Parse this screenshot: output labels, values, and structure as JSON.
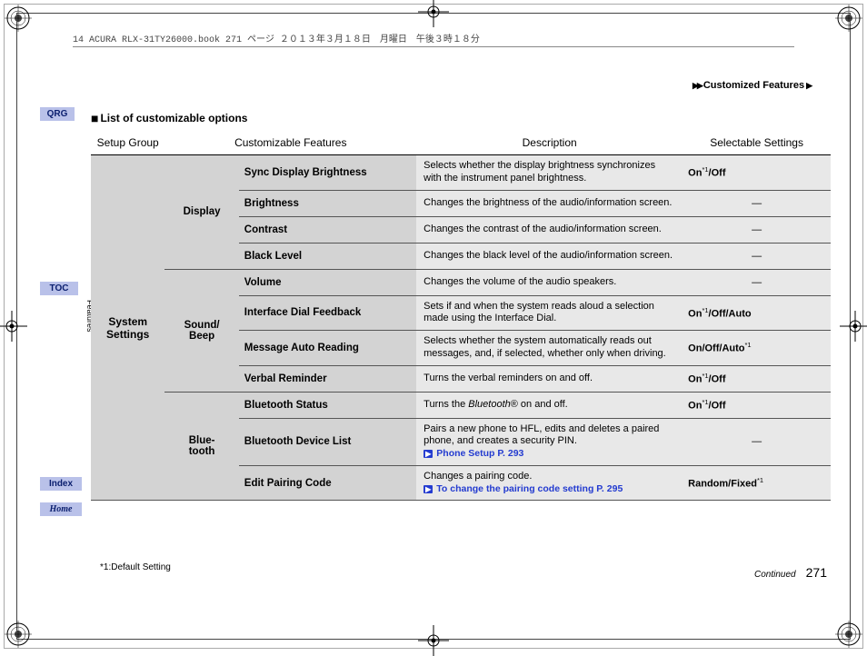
{
  "header_line": "14 ACURA RLX-31TY26000.book  271 ページ   ２０１３年３月１８日　月曜日　午後３時１８分",
  "breadcrumb": {
    "left": "▶▶",
    "text": "Customized Features",
    "right": "▶"
  },
  "sidebar": {
    "qrg": "QRG",
    "toc": "TOC",
    "features": "Features",
    "index": "Index",
    "home": "Home"
  },
  "title_prefix": "■",
  "title": "List of customizable options",
  "th": {
    "c1": "Setup Group",
    "c2": "Customizable Features",
    "c3": "Description",
    "c4": "Selectable Settings"
  },
  "group": "System Settings",
  "cats": {
    "display": "Display",
    "sound": "Sound/\nBeep",
    "bt": "Blue-\ntooth"
  },
  "rows": [
    {
      "feat": "Sync Display Brightness",
      "desc": "Selects whether the display brightness synchronizes with the instrument panel brightness.",
      "sel": "On*1/Off"
    },
    {
      "feat": "Brightness",
      "desc": "Changes the brightness of the audio/information screen.",
      "sel": "—",
      "dash": true
    },
    {
      "feat": "Contrast",
      "desc": "Changes the contrast of the audio/information screen.",
      "sel": "—",
      "dash": true
    },
    {
      "feat": "Black Level",
      "desc": "Changes the black level of the audio/information screen.",
      "sel": "—",
      "dash": true
    },
    {
      "feat": "Volume",
      "desc": "Changes the volume of the audio speakers.",
      "sel": "—",
      "dash": true
    },
    {
      "feat": "Interface Dial Feedback",
      "desc": "Sets if and when the system reads aloud a selection made using the Interface Dial.",
      "sel": "On*1/Off/Auto"
    },
    {
      "feat": "Message Auto Reading",
      "desc": "Selects whether the system automatically reads out messages, and, if selected, whether only when driving.",
      "sel": "On/Off/Auto*1"
    },
    {
      "feat": "Verbal Reminder",
      "desc": "Turns the verbal reminders on and off.",
      "sel": "On*1/Off"
    },
    {
      "feat": "Bluetooth Status",
      "desc": "Turns the <em>Bluetooth</em>® on and off.",
      "sel": "On*1/Off"
    },
    {
      "feat": "Bluetooth Device List",
      "desc": "Pairs a new phone to HFL, edits and deletes a paired phone, and creates a security PIN.",
      "ref": "Phone Setup P. 293",
      "sel": "—",
      "dash": true
    },
    {
      "feat": "Edit Pairing Code",
      "desc": "Changes a pairing code.",
      "ref": "To change the pairing code setting P. 295",
      "sel": "Random/Fixed*1"
    }
  ],
  "footnote": "*1:Default Setting",
  "continued": "Continued",
  "page": "271"
}
